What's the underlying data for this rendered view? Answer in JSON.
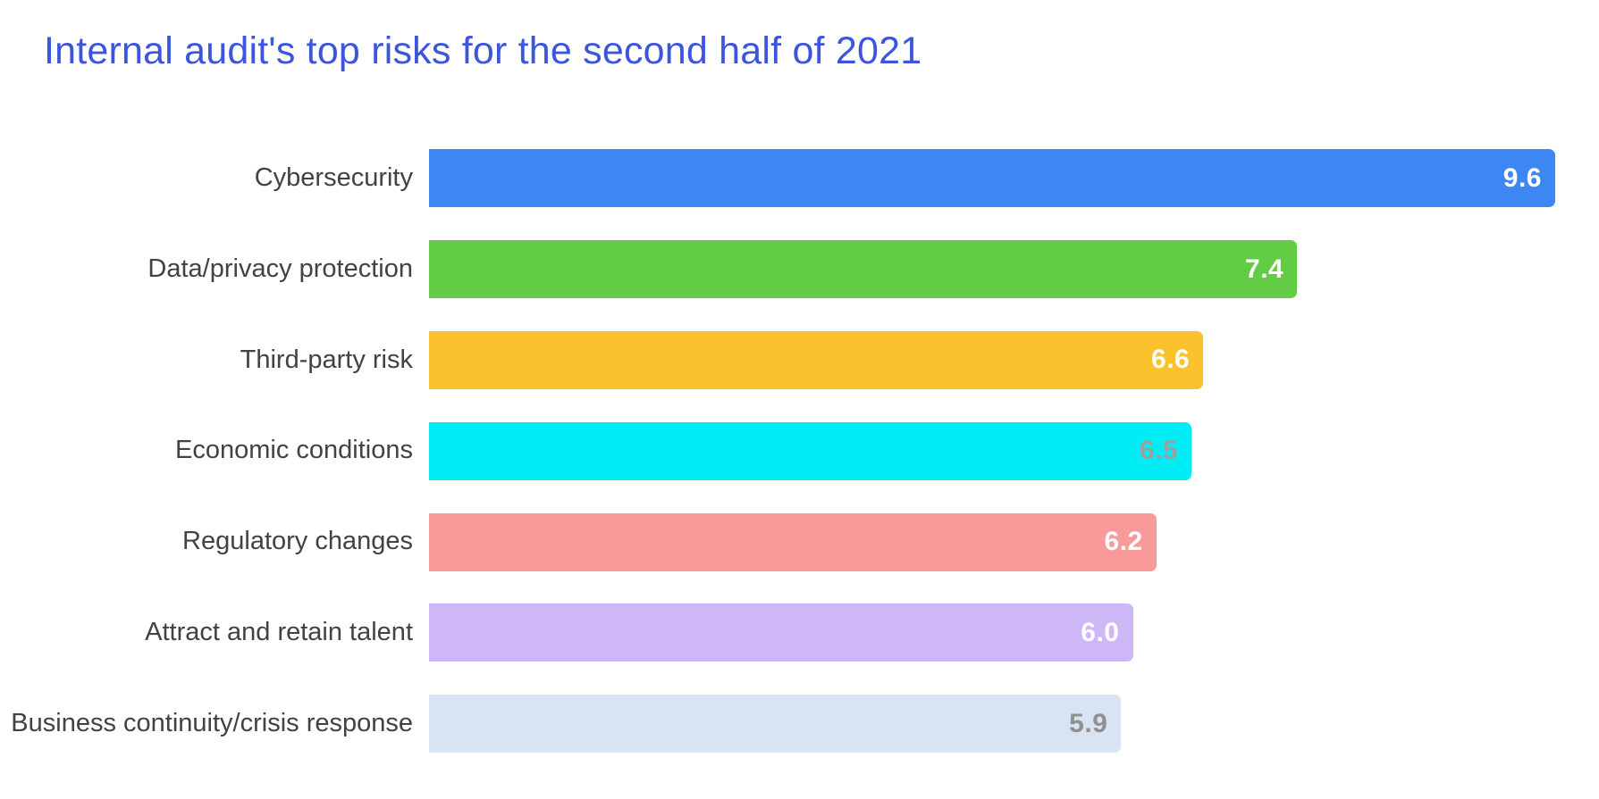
{
  "title": {
    "text": "Internal audit's top risks for the second half of 2021",
    "color": "#3c55df"
  },
  "chart_data": {
    "type": "bar",
    "orientation": "horizontal",
    "title": "Internal audit's top risks for the second half of 2021",
    "categories": [
      "Cybersecurity",
      "Data/privacy protection",
      "Third-party risk",
      "Economic conditions",
      "Regulatory changes",
      "Attract and retain talent",
      "Business continuity/crisis response"
    ],
    "values": [
      9.6,
      7.4,
      6.6,
      6.5,
      6.2,
      6.0,
      5.9
    ],
    "value_labels": [
      "9.6",
      "7.4",
      "6.6",
      "6.5",
      "6.2",
      "6.0",
      "5.9"
    ],
    "bar_colors": [
      "#3d87f5",
      "#62cc45",
      "#fbc22d",
      "#00edf5",
      "#f99a9a",
      "#ceb7f6",
      "#d8e4f4"
    ],
    "value_label_colors": [
      "#ffffff",
      "#ffffff",
      "#ffffff",
      "#9e9e9e",
      "#ffffff",
      "#ffffff",
      "#909090"
    ],
    "category_label_color": "#424242",
    "xlim": [
      0,
      9.6
    ],
    "grid": false,
    "legend": false,
    "axes_visible": false,
    "value_label_position": "inside-end"
  }
}
